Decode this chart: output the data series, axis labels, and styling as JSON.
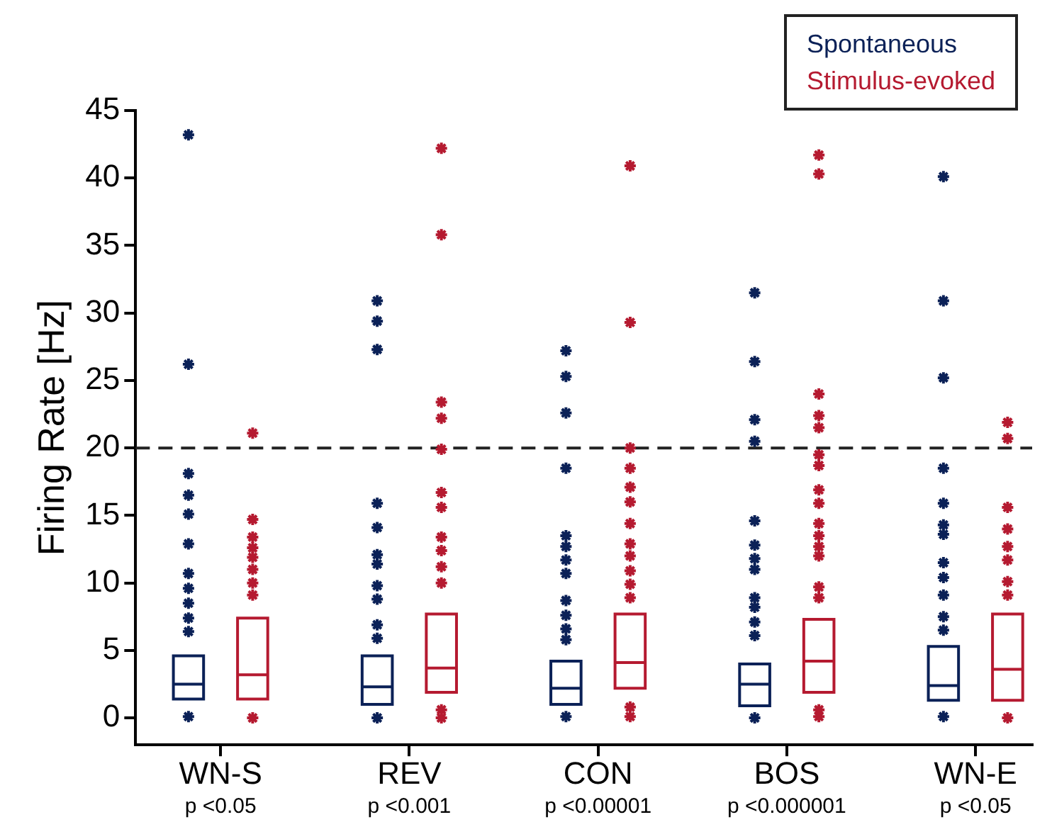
{
  "chart_data": {
    "type": "box",
    "ylabel": "Firing Rate [Hz]",
    "categories": [
      "WN-S",
      "REV",
      "CON",
      "BOS",
      "WN-E"
    ],
    "ylim": [
      -2,
      45
    ],
    "yticks": [
      0,
      5,
      10,
      15,
      20,
      25,
      30,
      35,
      40,
      45
    ],
    "grid": false,
    "legend": "top right",
    "marker": "star",
    "annotations": [
      "p <0.05",
      "p <0.001",
      "p <0.00001",
      "p <0.000001",
      "p <0.05"
    ],
    "ref_lines": [
      {
        "axis": "y",
        "value": 20,
        "color": "#222222",
        "line_style": "dashed"
      }
    ],
    "series": [
      {
        "name": "Spontaneous",
        "color": "#0b2157",
        "boxes": [
          {
            "low": 1.4,
            "q1": 1.4,
            "median": 2.5,
            "q3": 4.6,
            "high": 4.6,
            "outliers": [
              43.2,
              26.2,
              18.1,
              16.5,
              15.1,
              12.9,
              10.7,
              9.6,
              8.5,
              7.4,
              6.4,
              0.1
            ]
          },
          {
            "low": 1.0,
            "q1": 1.0,
            "median": 2.3,
            "q3": 4.6,
            "high": 4.6,
            "outliers": [
              30.9,
              29.4,
              27.3,
              15.9,
              14.1,
              12.1,
              11.4,
              9.8,
              8.8,
              6.9,
              5.9,
              0
            ]
          },
          {
            "low": 1.0,
            "q1": 1.0,
            "median": 2.2,
            "q3": 4.2,
            "high": 4.2,
            "outliers": [
              27.2,
              25.3,
              22.6,
              18.5,
              13.5,
              12.7,
              11.7,
              10.7,
              8.7,
              7.6,
              6.6,
              5.8,
              0.1
            ]
          },
          {
            "low": 0.9,
            "q1": 0.9,
            "median": 2.5,
            "q3": 4.0,
            "high": 4.0,
            "outliers": [
              31.5,
              26.4,
              22.1,
              20.5,
              14.6,
              12.8,
              11.8,
              11.0,
              8.9,
              8.2,
              7.1,
              6.1,
              0
            ]
          },
          {
            "low": 1.3,
            "q1": 1.3,
            "median": 2.4,
            "q3": 5.3,
            "high": 5.3,
            "outliers": [
              40.1,
              30.9,
              25.2,
              18.5,
              15.9,
              14.3,
              13.6,
              11.5,
              10.4,
              9.1,
              7.5,
              6.5,
              0.1
            ]
          }
        ]
      },
      {
        "name": "Stimulus-evoked",
        "color": "#b51a30",
        "boxes": [
          {
            "low": 1.4,
            "q1": 1.4,
            "median": 3.2,
            "q3": 7.4,
            "high": 7.4,
            "outliers": [
              21.1,
              14.7,
              13.4,
              12.6,
              11.9,
              11.0,
              10.0,
              9.1,
              0
            ]
          },
          {
            "low": 1.9,
            "q1": 1.9,
            "median": 3.7,
            "q3": 7.7,
            "high": 7.7,
            "outliers": [
              42.2,
              35.8,
              23.4,
              22.2,
              19.9,
              16.7,
              15.6,
              13.4,
              12.4,
              11.2,
              10.0,
              0.6,
              0
            ]
          },
          {
            "low": 2.2,
            "q1": 2.2,
            "median": 4.1,
            "q3": 7.7,
            "high": 7.7,
            "outliers": [
              40.9,
              29.3,
              20.0,
              18.5,
              17.1,
              16.0,
              14.4,
              12.9,
              12.0,
              10.9,
              9.9,
              8.9,
              0.8,
              0.1
            ]
          },
          {
            "low": 1.9,
            "q1": 1.9,
            "median": 4.2,
            "q3": 7.3,
            "high": 7.3,
            "outliers": [
              41.7,
              40.3,
              24.0,
              22.4,
              21.5,
              19.5,
              18.7,
              16.9,
              15.9,
              14.4,
              13.5,
              12.7,
              12.0,
              9.7,
              8.9,
              0.6,
              0.1
            ]
          },
          {
            "low": 1.3,
            "q1": 1.3,
            "median": 3.6,
            "q3": 7.7,
            "high": 7.7,
            "outliers": [
              21.9,
              20.7,
              15.6,
              14.0,
              12.7,
              11.7,
              10.1,
              9.1,
              0
            ]
          }
        ]
      }
    ]
  }
}
